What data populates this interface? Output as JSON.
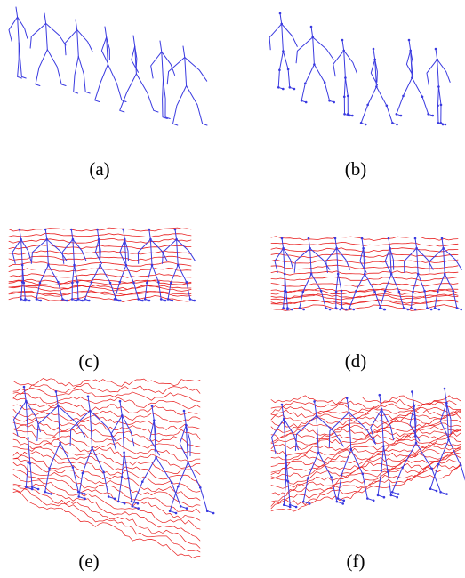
{
  "panels": [
    {
      "label": "(a)"
    },
    {
      "label": "(b)"
    },
    {
      "label": "(c)"
    },
    {
      "label": "(d)"
    },
    {
      "label": "(e)"
    },
    {
      "label": "(f)"
    }
  ]
}
